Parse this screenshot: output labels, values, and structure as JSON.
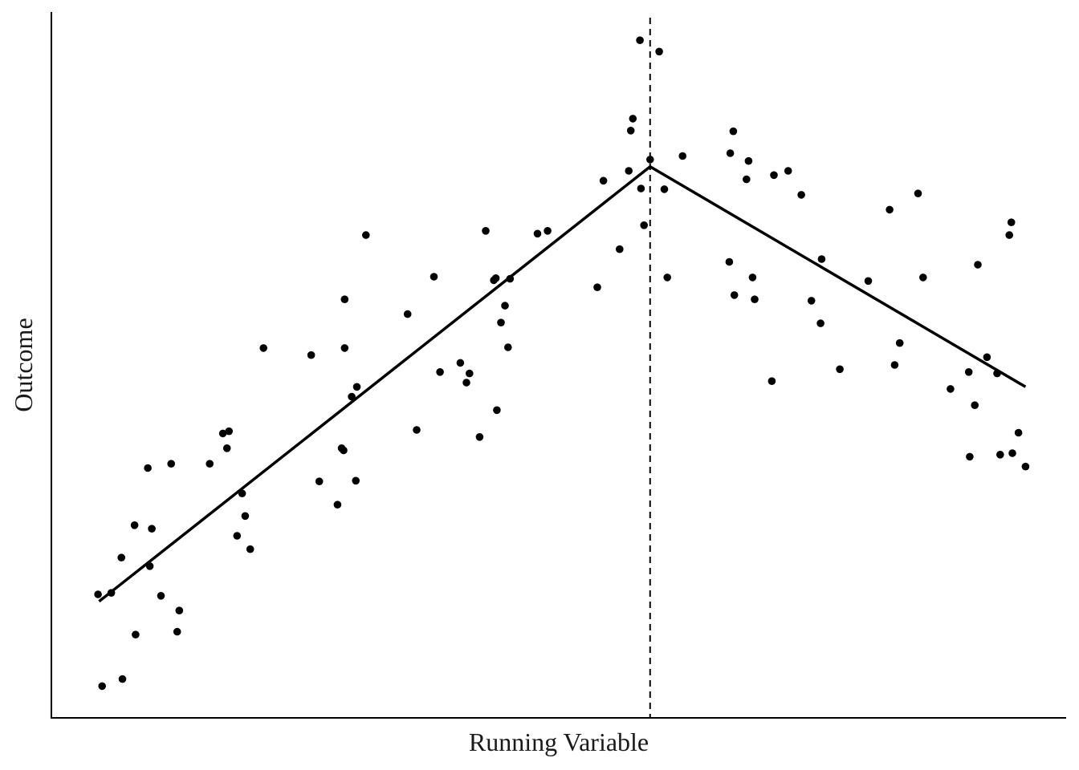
{
  "chart_data": {
    "type": "scatter",
    "title": "",
    "xlabel": "Running Variable",
    "ylabel": "Outcome",
    "xlim": [
      0,
      100
    ],
    "ylim": [
      0,
      100
    ],
    "ticks": "none",
    "grid": false,
    "legend": "none",
    "cutoff": 59,
    "points": [
      {
        "x": 4.6,
        "y": 17.5
      },
      {
        "x": 5.0,
        "y": 4.5
      },
      {
        "x": 5.9,
        "y": 17.7
      },
      {
        "x": 6.9,
        "y": 22.7
      },
      {
        "x": 7.0,
        "y": 5.5
      },
      {
        "x": 8.2,
        "y": 27.3
      },
      {
        "x": 8.3,
        "y": 11.8
      },
      {
        "x": 9.5,
        "y": 35.4
      },
      {
        "x": 9.7,
        "y": 21.5
      },
      {
        "x": 9.9,
        "y": 26.8
      },
      {
        "x": 10.8,
        "y": 17.3
      },
      {
        "x": 11.8,
        "y": 36.0
      },
      {
        "x": 12.4,
        "y": 12.2
      },
      {
        "x": 12.6,
        "y": 15.2
      },
      {
        "x": 15.6,
        "y": 36.0
      },
      {
        "x": 16.9,
        "y": 40.3
      },
      {
        "x": 17.3,
        "y": 38.2
      },
      {
        "x": 17.5,
        "y": 40.6
      },
      {
        "x": 18.3,
        "y": 25.8
      },
      {
        "x": 18.8,
        "y": 31.8
      },
      {
        "x": 19.1,
        "y": 28.6
      },
      {
        "x": 19.6,
        "y": 23.9
      },
      {
        "x": 20.9,
        "y": 52.4
      },
      {
        "x": 25.6,
        "y": 51.4
      },
      {
        "x": 26.4,
        "y": 33.5
      },
      {
        "x": 28.2,
        "y": 30.2
      },
      {
        "x": 28.6,
        "y": 38.2
      },
      {
        "x": 28.8,
        "y": 37.9
      },
      {
        "x": 28.9,
        "y": 59.3
      },
      {
        "x": 28.9,
        "y": 52.4
      },
      {
        "x": 29.6,
        "y": 45.5
      },
      {
        "x": 30.0,
        "y": 33.6
      },
      {
        "x": 30.1,
        "y": 46.9
      },
      {
        "x": 31.0,
        "y": 68.4
      },
      {
        "x": 35.1,
        "y": 57.2
      },
      {
        "x": 36.0,
        "y": 40.8
      },
      {
        "x": 37.7,
        "y": 62.5
      },
      {
        "x": 38.3,
        "y": 49.0
      },
      {
        "x": 40.3,
        "y": 50.3
      },
      {
        "x": 40.9,
        "y": 47.5
      },
      {
        "x": 41.2,
        "y": 48.8
      },
      {
        "x": 42.2,
        "y": 39.8
      },
      {
        "x": 42.8,
        "y": 69.0
      },
      {
        "x": 43.6,
        "y": 62.0
      },
      {
        "x": 43.8,
        "y": 62.3
      },
      {
        "x": 43.9,
        "y": 43.6
      },
      {
        "x": 44.3,
        "y": 56.0
      },
      {
        "x": 44.7,
        "y": 58.4
      },
      {
        "x": 45.0,
        "y": 52.5
      },
      {
        "x": 45.2,
        "y": 62.2
      },
      {
        "x": 47.9,
        "y": 68.6
      },
      {
        "x": 48.9,
        "y": 69.0
      },
      {
        "x": 53.8,
        "y": 61.0
      },
      {
        "x": 54.4,
        "y": 76.1
      },
      {
        "x": 56.0,
        "y": 66.4
      },
      {
        "x": 56.9,
        "y": 77.5
      },
      {
        "x": 57.1,
        "y": 83.2
      },
      {
        "x": 57.3,
        "y": 84.9
      },
      {
        "x": 58.0,
        "y": 96.0
      },
      {
        "x": 58.1,
        "y": 75.0
      },
      {
        "x": 58.4,
        "y": 69.8
      },
      {
        "x": 59.0,
        "y": 79.1
      },
      {
        "x": 59.9,
        "y": 94.4
      },
      {
        "x": 60.4,
        "y": 74.9
      },
      {
        "x": 60.7,
        "y": 62.4
      },
      {
        "x": 62.2,
        "y": 79.6
      },
      {
        "x": 66.8,
        "y": 64.6
      },
      {
        "x": 66.9,
        "y": 80.0
      },
      {
        "x": 67.2,
        "y": 83.1
      },
      {
        "x": 67.3,
        "y": 59.9
      },
      {
        "x": 68.5,
        "y": 76.3
      },
      {
        "x": 68.7,
        "y": 78.9
      },
      {
        "x": 69.1,
        "y": 62.4
      },
      {
        "x": 69.3,
        "y": 59.3
      },
      {
        "x": 71.0,
        "y": 47.7
      },
      {
        "x": 71.2,
        "y": 76.9
      },
      {
        "x": 72.6,
        "y": 77.5
      },
      {
        "x": 73.9,
        "y": 74.1
      },
      {
        "x": 74.9,
        "y": 59.1
      },
      {
        "x": 75.8,
        "y": 55.9
      },
      {
        "x": 75.9,
        "y": 65.0
      },
      {
        "x": 77.7,
        "y": 49.4
      },
      {
        "x": 80.5,
        "y": 61.9
      },
      {
        "x": 82.6,
        "y": 72.0
      },
      {
        "x": 83.1,
        "y": 50.0
      },
      {
        "x": 83.6,
        "y": 53.1
      },
      {
        "x": 85.4,
        "y": 74.3
      },
      {
        "x": 85.9,
        "y": 62.4
      },
      {
        "x": 88.6,
        "y": 46.6
      },
      {
        "x": 90.4,
        "y": 49.0
      },
      {
        "x": 90.5,
        "y": 37.0
      },
      {
        "x": 91.0,
        "y": 44.3
      },
      {
        "x": 91.3,
        "y": 64.2
      },
      {
        "x": 92.2,
        "y": 51.1
      },
      {
        "x": 93.2,
        "y": 48.8
      },
      {
        "x": 93.5,
        "y": 37.3
      },
      {
        "x": 94.4,
        "y": 68.4
      },
      {
        "x": 94.6,
        "y": 70.2
      },
      {
        "x": 94.7,
        "y": 37.5
      },
      {
        "x": 95.3,
        "y": 40.4
      },
      {
        "x": 96.0,
        "y": 35.6
      }
    ],
    "series": [
      {
        "x": [
          4.7,
          59.0
        ],
        "y": [
          16.5,
          78.1
        ]
      },
      {
        "x": [
          59.0,
          96.0
        ],
        "y": [
          78.1,
          46.9
        ]
      }
    ]
  }
}
